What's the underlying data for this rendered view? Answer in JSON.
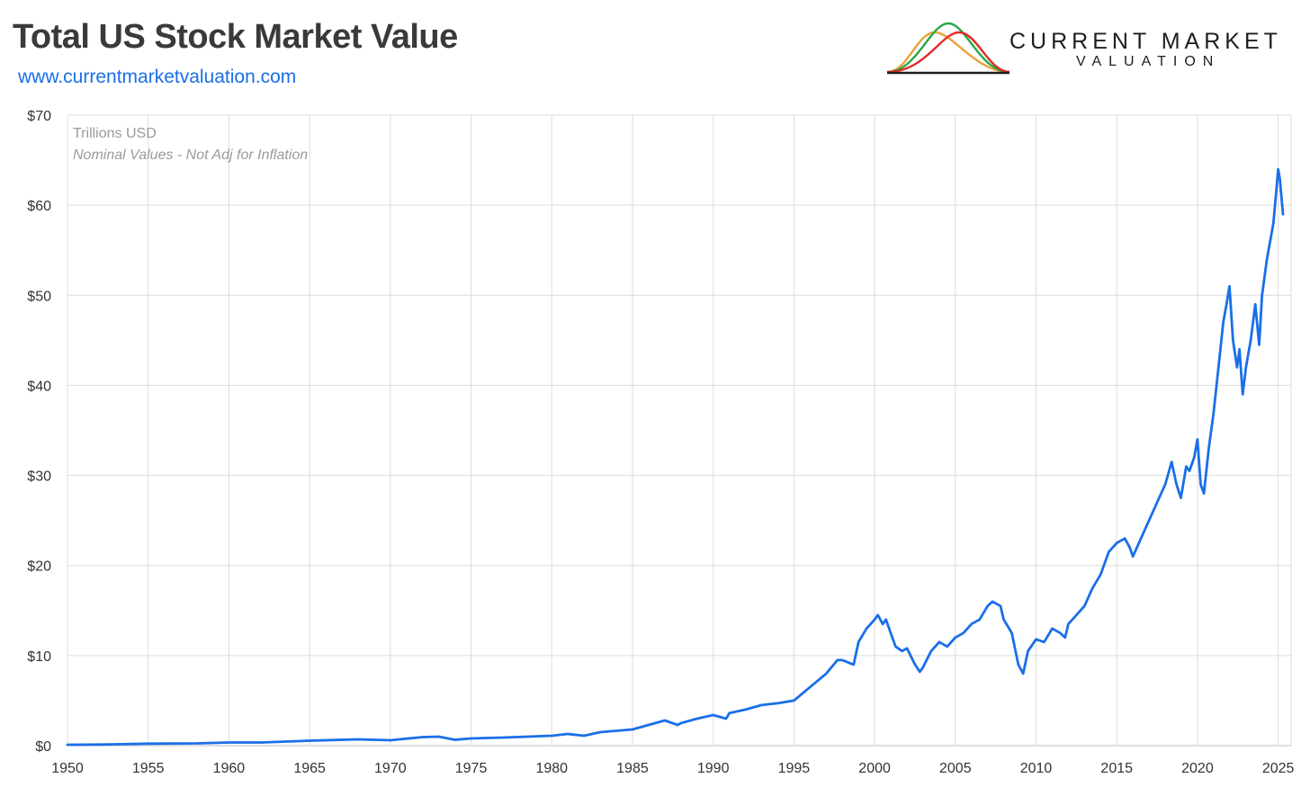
{
  "header": {
    "title": "Total US Stock Market Value",
    "url": "www.currentmarketvaluation.com"
  },
  "logo": {
    "line1": "CURRENT MARKET",
    "line2": "VALUATION",
    "curve_colors": [
      "#e8a33a",
      "#2aa84a",
      "#e02b2b"
    ]
  },
  "colors": {
    "line": "#1a6fe8",
    "grid": "#dcdcdc",
    "title": "#3a3a3a",
    "url": "#1a6fe8"
  },
  "chart_data": {
    "type": "line",
    "title": "Total US Stock Market Value",
    "ylabel": "Trillions USD",
    "note": "Nominal Values - Not Adj for Inflation",
    "xlim": [
      1950,
      2025.8
    ],
    "ylim": [
      0,
      70
    ],
    "x_ticks": [
      1950,
      1955,
      1960,
      1965,
      1970,
      1975,
      1980,
      1985,
      1990,
      1995,
      2000,
      2005,
      2010,
      2015,
      2020,
      2025
    ],
    "x_tick_labels": [
      "1950",
      "1955",
      "1960",
      "1965",
      "1970",
      "1975",
      "1980",
      "1985",
      "1990",
      "1995",
      "2000",
      "2005",
      "2010",
      "2015",
      "2020",
      "2025"
    ],
    "y_ticks": [
      0,
      10,
      20,
      30,
      40,
      50,
      60,
      70
    ],
    "y_tick_labels": [
      "$0",
      "$10",
      "$20",
      "$30",
      "$40",
      "$50",
      "$60",
      "$70"
    ],
    "grid": true,
    "series": [
      {
        "x": [
          1950,
          1952,
          1955,
          1958,
          1960,
          1962,
          1965,
          1968,
          1970,
          1972,
          1973,
          1974,
          1975,
          1977,
          1980,
          1981,
          1982,
          1983,
          1985,
          1986,
          1987,
          1987.8,
          1988,
          1989,
          1990,
          1990.8,
          1991,
          1992,
          1993,
          1994,
          1995,
          1996,
          1997,
          1997.7,
          1998,
          1998.7,
          1999,
          1999.5,
          2000,
          2000.2,
          2000.5,
          2000.7,
          2001,
          2001.3,
          2001.7,
          2002,
          2002.5,
          2002.8,
          2003,
          2003.5,
          2004,
          2004.5,
          2005,
          2005.5,
          2006,
          2006.5,
          2007,
          2007.3,
          2007.8,
          2008,
          2008.5,
          2008.9,
          2009.2,
          2009.5,
          2010,
          2010.5,
          2011,
          2011.5,
          2011.8,
          2012,
          2012.5,
          2013,
          2013.5,
          2014,
          2014.5,
          2015,
          2015.5,
          2015.8,
          2016,
          2016.5,
          2017,
          2017.5,
          2018,
          2018.4,
          2018.7,
          2018.97,
          2019.3,
          2019.5,
          2019.8,
          2020,
          2020.2,
          2020.4,
          2020.7,
          2021,
          2021.3,
          2021.6,
          2021.8,
          2021.98,
          2022.2,
          2022.45,
          2022.6,
          2022.8,
          2023,
          2023.3,
          2023.58,
          2023.82,
          2024,
          2024.3,
          2024.5,
          2024.7,
          2024.9,
          2025,
          2025.1,
          2025.3
        ],
        "values": [
          0.1,
          0.12,
          0.22,
          0.25,
          0.35,
          0.35,
          0.55,
          0.7,
          0.6,
          0.95,
          1.0,
          0.65,
          0.8,
          0.9,
          1.1,
          1.3,
          1.1,
          1.5,
          1.8,
          2.3,
          2.8,
          2.3,
          2.5,
          3.0,
          3.4,
          3.0,
          3.6,
          4.0,
          4.5,
          4.7,
          5.0,
          6.5,
          8.0,
          9.5,
          9.5,
          9.0,
          11.5,
          13.0,
          14.0,
          14.5,
          13.5,
          14.0,
          12.5,
          11.0,
          10.5,
          10.8,
          9.0,
          8.2,
          8.7,
          10.5,
          11.5,
          11.0,
          12.0,
          12.5,
          13.5,
          14.0,
          15.5,
          16.0,
          15.5,
          14.0,
          12.5,
          9.0,
          8.0,
          10.5,
          11.8,
          11.5,
          13.0,
          12.5,
          12.0,
          13.5,
          14.5,
          15.5,
          17.5,
          19.0,
          21.5,
          22.5,
          23.0,
          22.0,
          21.0,
          23.0,
          25.0,
          27.0,
          29.0,
          31.5,
          29.0,
          27.5,
          31.0,
          30.5,
          32.0,
          34.0,
          29.0,
          28.0,
          33.0,
          37.0,
          42.0,
          47.0,
          49.0,
          51.0,
          45.0,
          42.0,
          44.0,
          39.0,
          42.0,
          45.0,
          49.0,
          44.5,
          50.0,
          54.0,
          56.0,
          58.0,
          62.0,
          64.0,
          63.0,
          59.0
        ]
      }
    ]
  }
}
